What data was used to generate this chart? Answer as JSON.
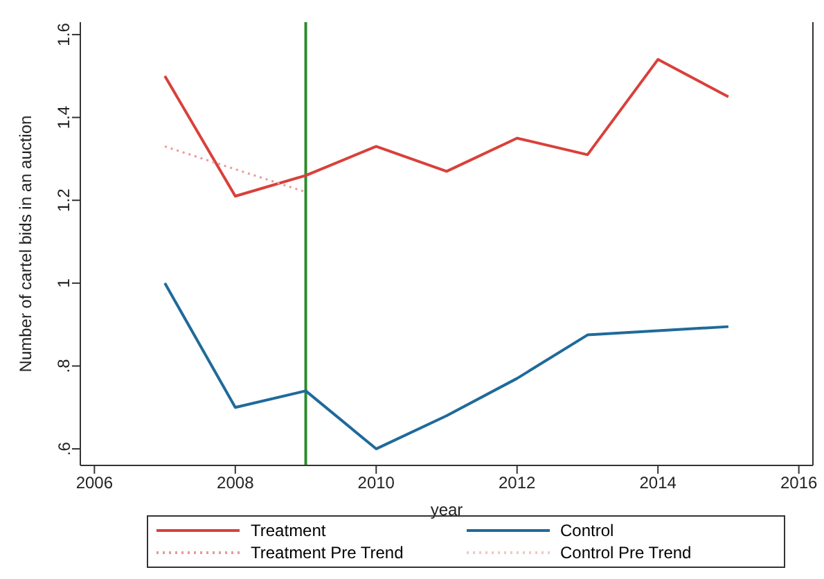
{
  "chart_data": {
    "type": "line",
    "xlabel": "year",
    "ylabel": "Number of cartel bids in an auction",
    "x": [
      2007,
      2008,
      2009,
      2010,
      2011,
      2012,
      2013,
      2014,
      2015
    ],
    "series": [
      {
        "name": "Treatment",
        "color": "#d9403a",
        "values": [
          1.5,
          1.21,
          1.26,
          1.33,
          1.27,
          1.35,
          1.31,
          1.54,
          1.45
        ]
      },
      {
        "name": "Control",
        "color": "#1f6a9a",
        "values": [
          1.0,
          0.7,
          0.74,
          0.6,
          0.68,
          0.77,
          0.875,
          0.885,
          0.895
        ]
      },
      {
        "name": "Treatment Pre Trend",
        "color": "#e89a96",
        "line_style": "dotted",
        "x": [
          2007,
          2009
        ],
        "values": [
          1.33,
          1.22
        ]
      },
      {
        "name": "Control Pre Trend",
        "color": "#f4c6c4",
        "line_style": "dotted",
        "values": [
          null,
          null,
          null,
          null,
          null,
          null,
          null,
          null,
          null
        ]
      }
    ],
    "xlim": [
      2005.8,
      2016.2
    ],
    "xticks": [
      2006,
      2008,
      2010,
      2012,
      2014,
      2016
    ],
    "ylim": [
      0.56,
      1.63
    ],
    "yticks": [
      {
        "value": 0.6,
        "label": ".6"
      },
      {
        "value": 0.8,
        "label": ".8"
      },
      1,
      1.2,
      1.4,
      1.6
    ],
    "ref_lines": [
      {
        "axis": "x",
        "value": 2009,
        "color": "#2e8b2e"
      }
    ],
    "grid": false,
    "legend": "bottom",
    "marker": "none",
    "line_style": "solid"
  }
}
